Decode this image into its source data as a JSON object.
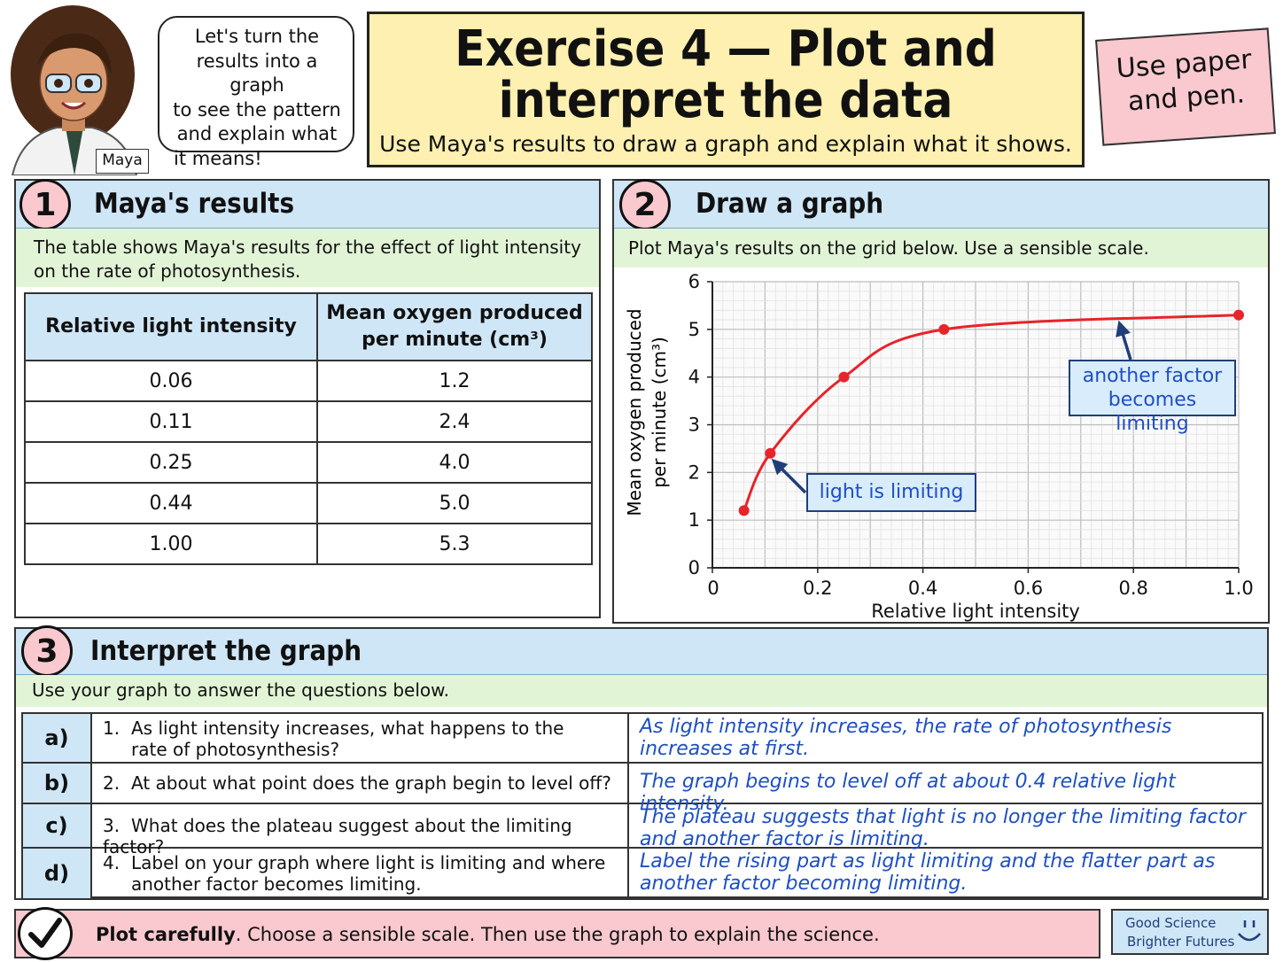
{
  "header": {
    "speech": [
      "Let's turn the",
      "results into a graph",
      "to see the pattern",
      "and explain what",
      "it means!"
    ],
    "character_name": "Maya",
    "title_line1": "Exercise 4 — Plot and",
    "title_line2": "interpret the data",
    "subtitle": "Use Maya's results to draw a graph and explain what it shows.",
    "note": [
      "Use paper",
      "and pen."
    ]
  },
  "section1": {
    "number": "1",
    "title": "Maya's results",
    "intro": [
      "The table shows Maya's results for the effect of light intensity",
      "on the rate of photosynthesis."
    ],
    "col1_header": "Relative light intensity",
    "col2_header_line1": "Mean oxygen produced",
    "col2_header_line2": "per minute (cm³)",
    "rows": [
      {
        "x": "0.06",
        "y": "1.2"
      },
      {
        "x": "0.11",
        "y": "2.4"
      },
      {
        "x": "0.25",
        "y": "4.0"
      },
      {
        "x": "0.44",
        "y": "5.0"
      },
      {
        "x": "1.00",
        "y": "5.3"
      }
    ]
  },
  "section2": {
    "number": "2",
    "title": "Draw a graph",
    "intro": "Plot Maya's results on the grid below. Use a sensible scale.",
    "callout_limiting": "light is limiting",
    "callout_other_line1": "another factor",
    "callout_other_line2": "becomes limiting"
  },
  "chart_data": {
    "type": "line",
    "x": [
      0.06,
      0.11,
      0.25,
      0.44,
      1.0
    ],
    "series": [
      {
        "values": [
          1.2,
          2.4,
          4.0,
          5.0,
          5.3
        ]
      }
    ],
    "xlabel": "Relative light intensity",
    "ylabel": "Mean oxygen produced per minute (cm³)",
    "ylabel_line1": "Mean oxygen produced",
    "ylabel_line2": "per minute (cm³)",
    "xlim": [
      0,
      1.0
    ],
    "ylim": [
      0,
      6
    ],
    "x_ticks": [
      "0",
      "0.2",
      "0.4",
      "0.6",
      "0.8",
      "1.0"
    ],
    "y_ticks": [
      "0",
      "1",
      "2",
      "3",
      "4",
      "5",
      "6"
    ],
    "grid": true,
    "line_color": "#e8232a"
  },
  "section3": {
    "number": "3",
    "title": "Interpret the graph",
    "intro": "Use your graph to answer the questions below.",
    "questions": [
      {
        "letter": "a)",
        "num": "1.",
        "line1": "As light intensity increases, what happens to the",
        "line2": "rate of photosynthesis?",
        "answer": "As light intensity increases, the rate of photosynthesis increases at first."
      },
      {
        "letter": "b)",
        "num": "2.",
        "line1": "At about what point does the graph begin to level off?",
        "line2": "",
        "answer": "The graph begins to level off at about 0.4 relative light intensity."
      },
      {
        "letter": "c)",
        "num": "3.",
        "line1": "What does the plateau suggest about the limiting factor?",
        "line2": "",
        "answer": "The plateau suggests that light is no longer the limiting factor and another factor is limiting."
      },
      {
        "letter": "d)",
        "num": "4.",
        "line1": "Label on your graph where light is limiting and where",
        "line2": "another factor becomes limiting.",
        "answer": "Label the rising part as light limiting and the flatter part as another factor becoming limiting."
      }
    ]
  },
  "footer": {
    "bold": "Plot carefully",
    "rest": ". Choose a sensible scale.  Then use the graph to explain the science.",
    "brand_line1": "Good Science",
    "brand_line2": "Brighter Futures"
  },
  "colors": {
    "blue_bar": "#cfe6f7",
    "green_bar": "#e2f4d6",
    "pink": "#f9c9cf",
    "title_bg": "#fdf0b0",
    "answer_blue": "#1d4fc4"
  }
}
